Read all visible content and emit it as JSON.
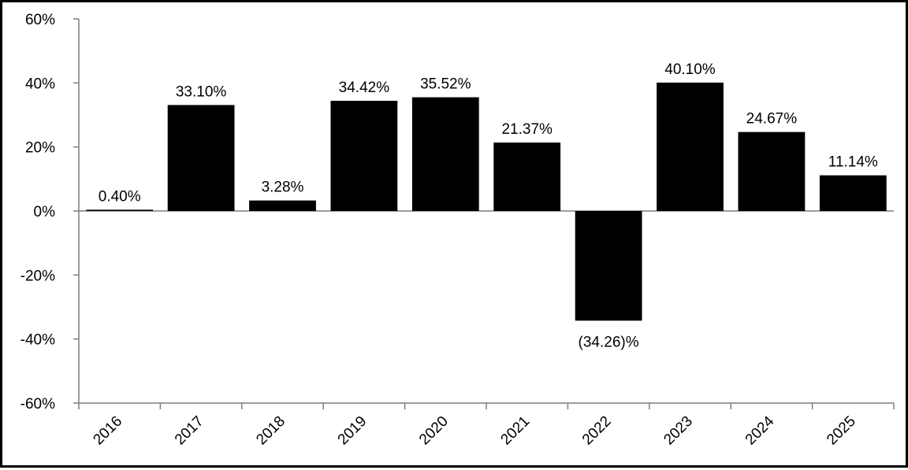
{
  "chart_data": {
    "type": "bar",
    "title": "",
    "xlabel": "",
    "ylabel": "",
    "categories": [
      "2016",
      "2017",
      "2018",
      "2019",
      "2020",
      "2021",
      "2022",
      "2023",
      "2024",
      "2025"
    ],
    "values": [
      0.4,
      33.1,
      3.28,
      34.42,
      35.52,
      21.37,
      -34.26,
      40.1,
      24.67,
      11.14
    ],
    "data_labels": [
      "0.40%",
      "33.10%",
      "3.28%",
      "34.42%",
      "35.52%",
      "21.37%",
      "(34.26)%",
      "40.10%",
      "24.67%",
      "11.14%"
    ],
    "ylim": [
      -60,
      60
    ],
    "yticks": [
      -60,
      -40,
      -20,
      0,
      20,
      40,
      60
    ],
    "ytick_labels": [
      "-60%",
      "-40%",
      "-20%",
      "0%",
      "20%",
      "40%",
      "60%"
    ],
    "grid": false,
    "legend": "none",
    "bar_color": "#000000",
    "axis_color": "#7f7f7f"
  }
}
